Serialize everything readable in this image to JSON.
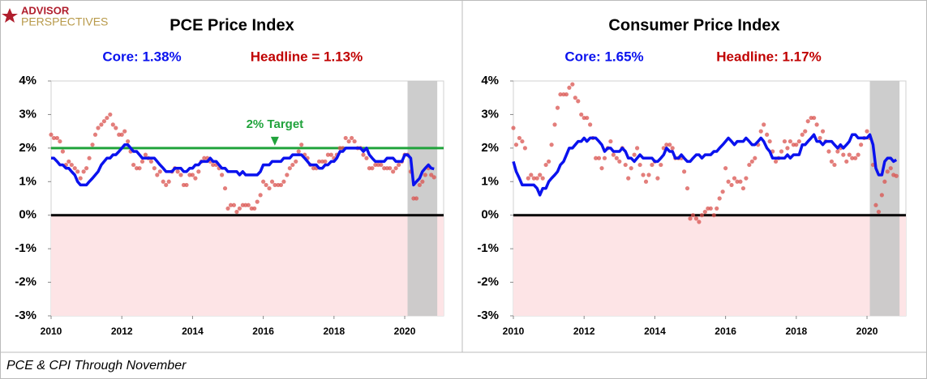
{
  "logo": {
    "line1": "ADVISOR",
    "line2": "PERSPECTIVES"
  },
  "footer": "PCE & CPI Through November",
  "chart_data": [
    {
      "type": "line",
      "title": "PCE Price Index",
      "x": [
        2010,
        2010.08,
        2010.17,
        2010.25,
        2010.33,
        2010.42,
        2010.5,
        2010.58,
        2010.67,
        2010.75,
        2010.83,
        2010.92,
        2011,
        2011.08,
        2011.17,
        2011.25,
        2011.33,
        2011.42,
        2011.5,
        2011.58,
        2011.67,
        2011.75,
        2011.83,
        2011.92,
        2012,
        2012.08,
        2012.17,
        2012.25,
        2012.33,
        2012.42,
        2012.5,
        2012.58,
        2012.67,
        2012.75,
        2012.83,
        2012.92,
        2013,
        2013.08,
        2013.17,
        2013.25,
        2013.33,
        2013.42,
        2013.5,
        2013.58,
        2013.67,
        2013.75,
        2013.83,
        2013.92,
        2014,
        2014.08,
        2014.17,
        2014.25,
        2014.33,
        2014.42,
        2014.5,
        2014.58,
        2014.67,
        2014.75,
        2014.83,
        2014.92,
        2015,
        2015.08,
        2015.17,
        2015.25,
        2015.33,
        2015.42,
        2015.5,
        2015.58,
        2015.67,
        2015.75,
        2015.83,
        2015.92,
        2016,
        2016.08,
        2016.17,
        2016.25,
        2016.33,
        2016.42,
        2016.5,
        2016.58,
        2016.67,
        2016.75,
        2016.83,
        2016.92,
        2017,
        2017.08,
        2017.17,
        2017.25,
        2017.33,
        2017.42,
        2017.5,
        2017.58,
        2017.67,
        2017.75,
        2017.83,
        2017.92,
        2018,
        2018.08,
        2018.17,
        2018.25,
        2018.33,
        2018.42,
        2018.5,
        2018.58,
        2018.67,
        2018.75,
        2018.83,
        2018.92,
        2019,
        2019.08,
        2019.17,
        2019.25,
        2019.33,
        2019.42,
        2019.5,
        2019.58,
        2019.67,
        2019.75,
        2019.83,
        2019.92,
        2020,
        2020.08,
        2020.17,
        2020.25,
        2020.33,
        2020.42,
        2020.5,
        2020.58,
        2020.67,
        2020.75,
        2020.83
      ],
      "series": [
        {
          "name": "Core: 1.38%",
          "style": "line",
          "color": "#0a12ee",
          "values": [
            1.7,
            1.7,
            1.6,
            1.5,
            1.5,
            1.4,
            1.4,
            1.3,
            1.2,
            1.0,
            0.9,
            0.9,
            0.9,
            1.0,
            1.1,
            1.2,
            1.3,
            1.5,
            1.6,
            1.7,
            1.7,
            1.8,
            1.8,
            1.9,
            2.0,
            2.1,
            2.1,
            2.0,
            1.9,
            1.9,
            1.8,
            1.7,
            1.7,
            1.7,
            1.7,
            1.7,
            1.6,
            1.5,
            1.4,
            1.3,
            1.3,
            1.3,
            1.4,
            1.4,
            1.4,
            1.3,
            1.3,
            1.4,
            1.4,
            1.5,
            1.5,
            1.6,
            1.6,
            1.6,
            1.7,
            1.6,
            1.6,
            1.5,
            1.4,
            1.4,
            1.3,
            1.3,
            1.3,
            1.3,
            1.2,
            1.3,
            1.2,
            1.2,
            1.2,
            1.2,
            1.2,
            1.3,
            1.5,
            1.5,
            1.5,
            1.6,
            1.6,
            1.6,
            1.6,
            1.7,
            1.7,
            1.7,
            1.8,
            1.8,
            1.8,
            1.8,
            1.7,
            1.6,
            1.5,
            1.5,
            1.5,
            1.4,
            1.4,
            1.5,
            1.5,
            1.6,
            1.6,
            1.7,
            1.9,
            1.9,
            2.0,
            2.0,
            2.0,
            2.0,
            2.0,
            2.0,
            1.9,
            2.0,
            1.8,
            1.7,
            1.6,
            1.6,
            1.6,
            1.6,
            1.7,
            1.7,
            1.7,
            1.6,
            1.6,
            1.6,
            1.8,
            1.8,
            1.7,
            0.9,
            1.0,
            1.1,
            1.3,
            1.4,
            1.5,
            1.4,
            1.38
          ]
        },
        {
          "name": "Headline = 1.13%",
          "style": "markers",
          "color": "#d9534f",
          "values": [
            2.4,
            2.3,
            2.3,
            2.2,
            1.9,
            1.5,
            1.6,
            1.5,
            1.4,
            1.3,
            1.1,
            1.3,
            1.4,
            1.7,
            2.1,
            2.4,
            2.6,
            2.7,
            2.8,
            2.9,
            3.0,
            2.7,
            2.6,
            2.4,
            2.4,
            2.5,
            2.2,
            1.9,
            1.5,
            1.4,
            1.4,
            1.6,
            1.8,
            1.7,
            1.6,
            1.4,
            1.2,
            1.3,
            1.0,
            0.9,
            1.0,
            1.3,
            1.4,
            1.3,
            1.2,
            0.9,
            0.9,
            1.2,
            1.2,
            1.1,
            1.3,
            1.6,
            1.7,
            1.7,
            1.6,
            1.5,
            1.5,
            1.4,
            1.2,
            0.8,
            0.2,
            0.3,
            0.3,
            0.1,
            0.2,
            0.3,
            0.3,
            0.3,
            0.2,
            0.2,
            0.4,
            0.6,
            1.0,
            0.9,
            0.8,
            1.0,
            0.9,
            0.9,
            0.9,
            1.0,
            1.2,
            1.4,
            1.5,
            1.6,
            1.9,
            2.1,
            1.8,
            1.7,
            1.5,
            1.4,
            1.4,
            1.6,
            1.6,
            1.6,
            1.8,
            1.8,
            1.7,
            1.8,
            2.0,
            2.0,
            2.3,
            2.2,
            2.3,
            2.2,
            2.0,
            2.0,
            1.8,
            1.7,
            1.4,
            1.4,
            1.5,
            1.5,
            1.5,
            1.4,
            1.4,
            1.4,
            1.3,
            1.4,
            1.5,
            1.6,
            1.8,
            1.8,
            1.3,
            0.5,
            0.5,
            0.9,
            1.0,
            1.2,
            1.4,
            1.2,
            1.13
          ]
        }
      ],
      "xlim": [
        2010,
        2021.1
      ],
      "xticks": [
        2010,
        2012,
        2014,
        2016,
        2018,
        2020
      ],
      "ylim": [
        -3,
        4
      ],
      "yticks": [
        {
          "value": -3,
          "label": "-3%"
        },
        {
          "value": -2,
          "label": "-2%"
        },
        {
          "value": -1,
          "label": "-1%"
        },
        {
          "value": 0,
          "label": "0%"
        },
        {
          "value": 1,
          "label": "1%"
        },
        {
          "value": 2,
          "label": "2%"
        },
        {
          "value": 3,
          "label": "3%"
        },
        {
          "value": 4,
          "label": "4%"
        }
      ],
      "shade": [
        2020.08,
        2020.92
      ],
      "target": {
        "value": 2,
        "label": "2% Target",
        "color": "#21a33c"
      }
    },
    {
      "type": "line",
      "title": "Consumer Price Index",
      "x": [
        2010,
        2010.08,
        2010.17,
        2010.25,
        2010.33,
        2010.42,
        2010.5,
        2010.58,
        2010.67,
        2010.75,
        2010.83,
        2010.92,
        2011,
        2011.08,
        2011.17,
        2011.25,
        2011.33,
        2011.42,
        2011.5,
        2011.58,
        2011.67,
        2011.75,
        2011.83,
        2011.92,
        2012,
        2012.08,
        2012.17,
        2012.25,
        2012.33,
        2012.42,
        2012.5,
        2012.58,
        2012.67,
        2012.75,
        2012.83,
        2012.92,
        2013,
        2013.08,
        2013.17,
        2013.25,
        2013.33,
        2013.42,
        2013.5,
        2013.58,
        2013.67,
        2013.75,
        2013.83,
        2013.92,
        2014,
        2014.08,
        2014.17,
        2014.25,
        2014.33,
        2014.42,
        2014.5,
        2014.58,
        2014.67,
        2014.75,
        2014.83,
        2014.92,
        2015,
        2015.08,
        2015.17,
        2015.25,
        2015.33,
        2015.42,
        2015.5,
        2015.58,
        2015.67,
        2015.75,
        2015.83,
        2015.92,
        2016,
        2016.08,
        2016.17,
        2016.25,
        2016.33,
        2016.42,
        2016.5,
        2016.58,
        2016.67,
        2016.75,
        2016.83,
        2016.92,
        2017,
        2017.08,
        2017.17,
        2017.25,
        2017.33,
        2017.42,
        2017.5,
        2017.58,
        2017.67,
        2017.75,
        2017.83,
        2017.92,
        2018,
        2018.08,
        2018.17,
        2018.25,
        2018.33,
        2018.42,
        2018.5,
        2018.58,
        2018.67,
        2018.75,
        2018.83,
        2018.92,
        2019,
        2019.08,
        2019.17,
        2019.25,
        2019.33,
        2019.42,
        2019.5,
        2019.58,
        2019.67,
        2019.75,
        2019.83,
        2019.92,
        2020,
        2020.08,
        2020.17,
        2020.25,
        2020.33,
        2020.42,
        2020.5,
        2020.58,
        2020.67,
        2020.75,
        2020.83
      ],
      "series": [
        {
          "name": "Core: 1.65%",
          "style": "line",
          "color": "#0a12ee",
          "values": [
            1.6,
            1.3,
            1.1,
            0.9,
            0.9,
            0.9,
            0.9,
            0.9,
            0.8,
            0.6,
            0.8,
            0.8,
            1.0,
            1.1,
            1.2,
            1.3,
            1.5,
            1.6,
            1.8,
            2.0,
            2.0,
            2.1,
            2.2,
            2.2,
            2.3,
            2.2,
            2.3,
            2.3,
            2.3,
            2.2,
            2.1,
            1.9,
            2.0,
            2.0,
            1.9,
            1.9,
            1.9,
            2.0,
            1.9,
            1.7,
            1.7,
            1.6,
            1.7,
            1.8,
            1.7,
            1.7,
            1.7,
            1.7,
            1.6,
            1.6,
            1.7,
            1.8,
            2.0,
            1.9,
            1.9,
            1.7,
            1.7,
            1.8,
            1.7,
            1.6,
            1.6,
            1.7,
            1.8,
            1.8,
            1.7,
            1.8,
            1.8,
            1.8,
            1.9,
            1.9,
            2.0,
            2.1,
            2.2,
            2.3,
            2.2,
            2.1,
            2.2,
            2.2,
            2.2,
            2.3,
            2.2,
            2.1,
            2.1,
            2.2,
            2.3,
            2.2,
            2.0,
            1.9,
            1.7,
            1.7,
            1.7,
            1.7,
            1.7,
            1.8,
            1.7,
            1.8,
            1.8,
            1.8,
            2.1,
            2.1,
            2.2,
            2.3,
            2.4,
            2.2,
            2.2,
            2.1,
            2.2,
            2.2,
            2.2,
            2.1,
            2.0,
            2.1,
            2.0,
            2.1,
            2.2,
            2.4,
            2.4,
            2.3,
            2.3,
            2.3,
            2.3,
            2.4,
            2.1,
            1.4,
            1.2,
            1.2,
            1.6,
            1.7,
            1.7,
            1.6,
            1.65
          ]
        },
        {
          "name": "Headline: 1.17%",
          "style": "markers",
          "color": "#d9534f",
          "values": [
            2.6,
            2.1,
            2.3,
            2.2,
            2.0,
            1.1,
            1.2,
            1.1,
            1.1,
            1.2,
            1.1,
            1.5,
            1.6,
            2.1,
            2.7,
            3.2,
            3.6,
            3.6,
            3.6,
            3.8,
            3.9,
            3.5,
            3.4,
            3.0,
            2.9,
            2.9,
            2.7,
            2.3,
            1.7,
            1.7,
            1.4,
            1.7,
            2.0,
            2.2,
            1.8,
            1.7,
            1.6,
            2.0,
            1.5,
            1.1,
            1.4,
            1.8,
            2.0,
            1.5,
            1.2,
            1.0,
            1.2,
            1.5,
            1.6,
            1.1,
            1.5,
            2.0,
            2.1,
            2.1,
            2.0,
            1.7,
            1.7,
            1.7,
            1.3,
            0.8,
            -0.1,
            0.0,
            -0.1,
            -0.2,
            0.0,
            0.1,
            0.2,
            0.2,
            0.0,
            0.2,
            0.5,
            0.7,
            1.4,
            1.0,
            0.9,
            1.1,
            1.0,
            1.0,
            0.8,
            1.1,
            1.5,
            1.6,
            1.7,
            2.1,
            2.5,
            2.7,
            2.4,
            2.2,
            1.9,
            1.6,
            1.7,
            1.9,
            2.2,
            2.0,
            2.2,
            2.1,
            2.1,
            2.2,
            2.4,
            2.5,
            2.8,
            2.9,
            2.9,
            2.7,
            2.3,
            2.5,
            2.2,
            1.9,
            1.6,
            1.5,
            1.9,
            2.0,
            1.8,
            1.6,
            1.8,
            1.7,
            1.7,
            1.8,
            2.1,
            2.3,
            2.5,
            2.3,
            1.5,
            0.3,
            0.1,
            0.6,
            1.0,
            1.3,
            1.4,
            1.2,
            1.17
          ]
        }
      ],
      "xlim": [
        2010,
        2021.1
      ],
      "xticks": [
        2010,
        2012,
        2014,
        2016,
        2018,
        2020
      ],
      "ylim": [
        -3,
        4
      ],
      "yticks": [
        {
          "value": -3,
          "label": "-3%"
        },
        {
          "value": -2,
          "label": "-2%"
        },
        {
          "value": -1,
          "label": "-1%"
        },
        {
          "value": 0,
          "label": "0%"
        },
        {
          "value": 1,
          "label": "1%"
        },
        {
          "value": 2,
          "label": "2%"
        },
        {
          "value": 3,
          "label": "3%"
        },
        {
          "value": 4,
          "label": "4%"
        }
      ],
      "shade": [
        2020.08,
        2020.92
      ]
    }
  ]
}
